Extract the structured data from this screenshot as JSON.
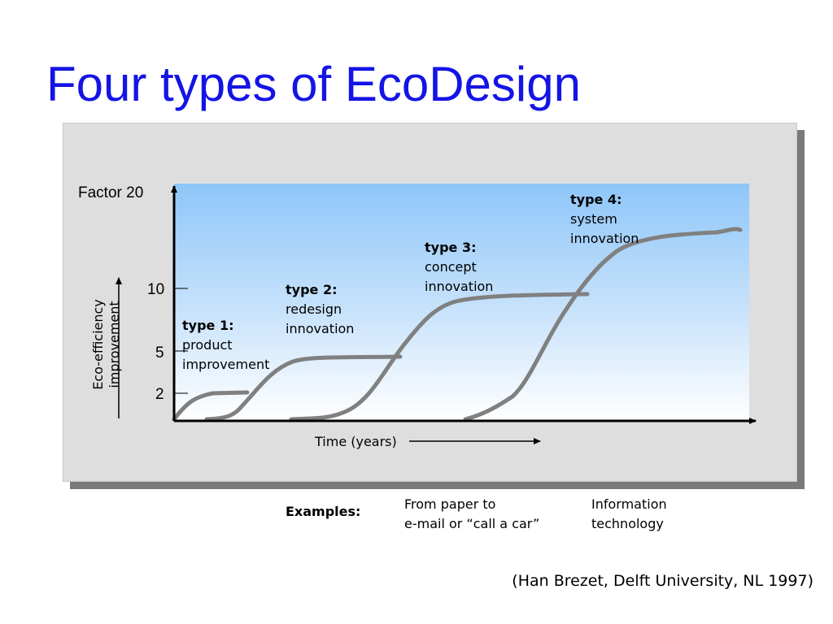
{
  "title": "Four types of EcoDesign",
  "diagram": {
    "y_axis": {
      "top_label": "Factor 20",
      "ticks": [
        "10",
        "5",
        "2"
      ],
      "label_line1": "Eco-efficiency",
      "label_line2": "improvement"
    },
    "x_axis": {
      "label": "Time (years)"
    },
    "types": [
      {
        "heading": "type 1:",
        "line1": "product",
        "line2": "improvement"
      },
      {
        "heading": "type 2:",
        "line1": "redesign",
        "line2": "innovation"
      },
      {
        "heading": "type 3:",
        "line1": "concept",
        "line2": "innovation"
      },
      {
        "heading": "type 4:",
        "line1": "system",
        "line2": "innovation"
      }
    ],
    "curve_color": "#808080",
    "axis_color": "#000000"
  },
  "examples": {
    "label": "Examples:",
    "items": [
      {
        "line1": "From paper to",
        "line2": "e-mail or “call a car”"
      },
      {
        "line1": "Information",
        "line2": "technology"
      }
    ]
  },
  "citation": "(Han Brezet, Delft University, NL 1997)",
  "colors": {
    "title": "#1414e6",
    "panel": "#dedede",
    "panel_shadow": "#7a7a7a",
    "plot_gradient_top": "#8ec6f9"
  }
}
